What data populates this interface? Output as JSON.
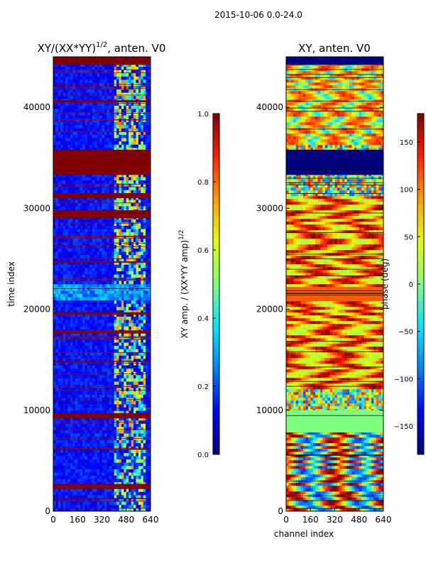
{
  "suptitle": "2015-10-06 0.0-24.0",
  "colormap": [
    "#00007f",
    "#0000ff",
    "#0080ff",
    "#00e5ff",
    "#7fff7f",
    "#e5ff00",
    "#ff9a00",
    "#ff1e00",
    "#7f0000"
  ],
  "chart_data": [
    {
      "type": "heatmap",
      "title": "XY/(XX*YY)^(1/2), anten. V0",
      "title_main": "XY/(XX*YY)",
      "title_exp": "1/2",
      "title_tail": ", anten. V0",
      "xlabel": "",
      "ylabel": "time index",
      "xlim": [
        0,
        640
      ],
      "ylim": [
        0,
        45000
      ],
      "xticks": [
        0,
        160,
        320,
        480,
        640
      ],
      "yticks": [
        0,
        10000,
        20000,
        30000,
        40000
      ],
      "colorbar": {
        "label_main": "XY amp. / (XX*YY amp)",
        "label_exp": "1/2",
        "range": [
          0.0,
          1.0
        ],
        "ticks": [
          "0.0",
          "0.2",
          "0.4",
          "0.6",
          "0.8",
          "1.0"
        ]
      }
    },
    {
      "type": "heatmap",
      "title": "XY, anten. V0",
      "xlabel": "channel index",
      "ylabel": "",
      "xlim": [
        0,
        640
      ],
      "ylim": [
        0,
        45000
      ],
      "xticks": [
        0,
        160,
        320,
        480,
        640
      ],
      "yticks": [
        0,
        10000,
        20000,
        30000,
        40000
      ],
      "colorbar": {
        "label": "phase (deg)",
        "range": [
          -180,
          180
        ],
        "ticks": [
          "150",
          "100",
          "50",
          "0",
          "−50",
          "−100",
          "−150"
        ]
      }
    }
  ]
}
